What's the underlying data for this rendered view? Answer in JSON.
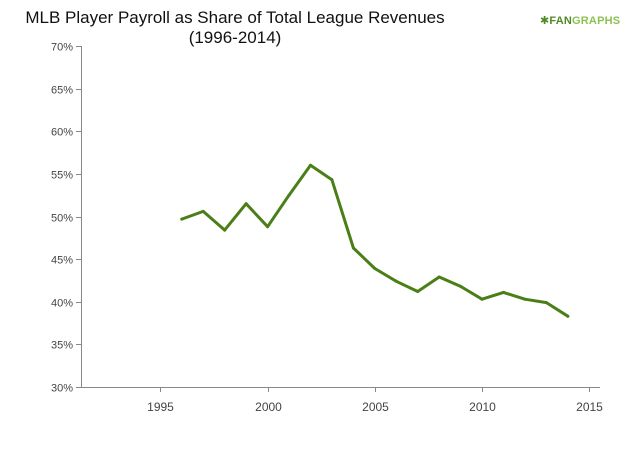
{
  "title_line1": "MLB Player Payroll as  Share of Total League Revenues",
  "title_line2": "(1996-2014)",
  "logo": {
    "mark": "✱",
    "fan": "FAN",
    "graphs": "GRAPHS"
  },
  "colors": {
    "line": "#4a7f18",
    "axis": "#888888",
    "tick_text": "#444444"
  },
  "chart_data": {
    "type": "line",
    "title": "MLB Player Payroll as  Share of Total League Revenues (1996-2014)",
    "xlabel": "",
    "ylabel": "",
    "xlim": [
      1991.3,
      2015.5
    ],
    "ylim": [
      30,
      70
    ],
    "x_ticks": [
      1995,
      2000,
      2005,
      2010,
      2015
    ],
    "y_ticks": [
      30,
      35,
      40,
      45,
      50,
      55,
      60,
      65,
      70
    ],
    "y_tick_format": "{v}%",
    "grid": false,
    "legend": "none",
    "series": [
      {
        "x": [
          1996,
          1997,
          1998,
          1999,
          2000,
          2001,
          2002,
          2003,
          2004,
          2005,
          2006,
          2007,
          2008,
          2009,
          2010,
          2011,
          2012,
          2013,
          2014
        ],
        "values": [
          49.7,
          50.6,
          48.4,
          51.5,
          48.8,
          52.5,
          56.0,
          54.3,
          46.3,
          43.9,
          42.4,
          41.2,
          42.9,
          41.8,
          40.3,
          41.1,
          40.3,
          39.9,
          38.3
        ]
      }
    ]
  }
}
